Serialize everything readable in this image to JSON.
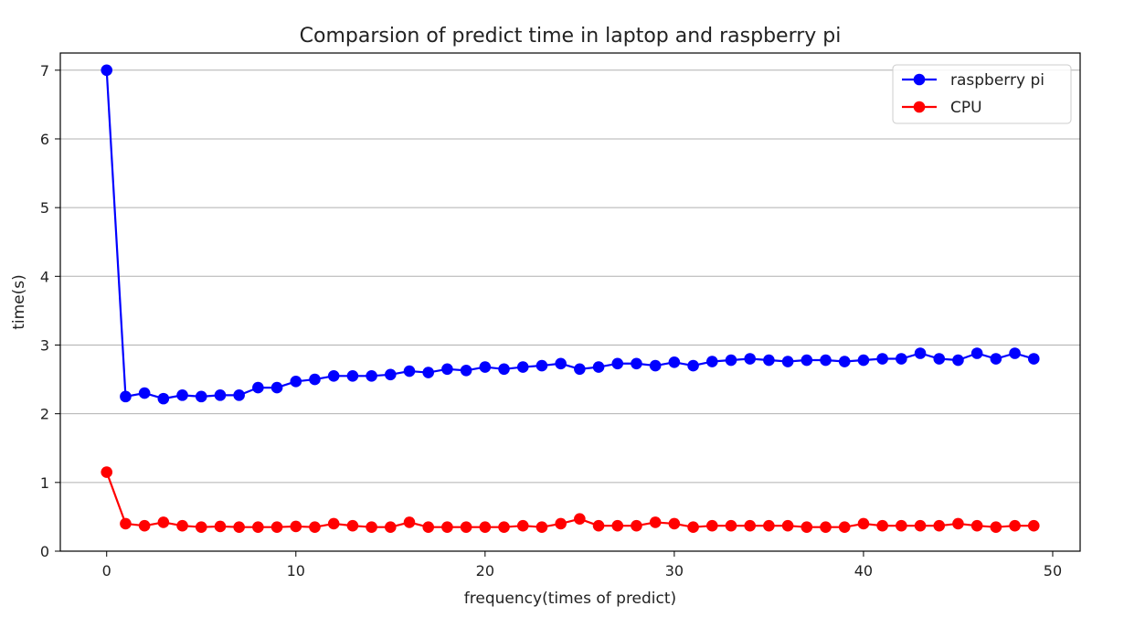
{
  "chart_data": {
    "type": "line",
    "title": "Comparsion of predict time in laptop and raspberry pi",
    "xlabel": "frequency(times of predict)",
    "ylabel": "time(s)",
    "xlim": [
      -2.45,
      51.45
    ],
    "ylim": [
      0,
      7.25
    ],
    "xticks": [
      0,
      10,
      20,
      30,
      40,
      50
    ],
    "yticks": [
      0,
      1,
      2,
      3,
      4,
      5,
      6,
      7
    ],
    "grid": "horizontal",
    "legend_position": "top-right",
    "x": [
      0,
      1,
      2,
      3,
      4,
      5,
      6,
      7,
      8,
      9,
      10,
      11,
      12,
      13,
      14,
      15,
      16,
      17,
      18,
      19,
      20,
      21,
      22,
      23,
      24,
      25,
      26,
      27,
      28,
      29,
      30,
      31,
      32,
      33,
      34,
      35,
      36,
      37,
      38,
      39,
      40,
      41,
      42,
      43,
      44,
      45,
      46,
      47,
      48,
      49
    ],
    "series": [
      {
        "name": "raspberry pi",
        "color": "#0000ff",
        "values": [
          7.0,
          2.25,
          2.3,
          2.22,
          2.27,
          2.25,
          2.27,
          2.27,
          2.38,
          2.38,
          2.47,
          2.5,
          2.55,
          2.55,
          2.55,
          2.57,
          2.62,
          2.6,
          2.65,
          2.63,
          2.68,
          2.65,
          2.68,
          2.7,
          2.73,
          2.65,
          2.68,
          2.73,
          2.73,
          2.7,
          2.75,
          2.7,
          2.76,
          2.78,
          2.8,
          2.78,
          2.76,
          2.78,
          2.78,
          2.76,
          2.78,
          2.8,
          2.8,
          2.88,
          2.8,
          2.78,
          2.88,
          2.8,
          2.88,
          2.8
        ]
      },
      {
        "name": "CPU",
        "color": "#ff0000",
        "values": [
          1.15,
          0.4,
          0.37,
          0.42,
          0.37,
          0.35,
          0.36,
          0.35,
          0.35,
          0.35,
          0.36,
          0.35,
          0.4,
          0.37,
          0.35,
          0.35,
          0.42,
          0.35,
          0.35,
          0.35,
          0.35,
          0.35,
          0.37,
          0.35,
          0.4,
          0.47,
          0.37,
          0.37,
          0.37,
          0.42,
          0.4,
          0.35,
          0.37,
          0.37,
          0.37,
          0.37,
          0.37,
          0.35,
          0.35,
          0.35,
          0.4,
          0.37,
          0.37,
          0.37,
          0.37,
          0.4,
          0.37,
          0.35,
          0.37,
          0.37
        ]
      }
    ]
  }
}
